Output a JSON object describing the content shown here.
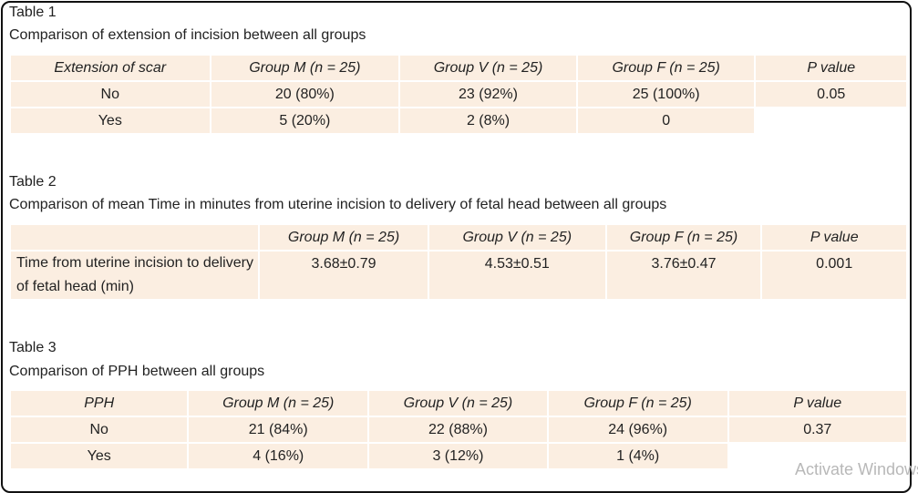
{
  "table1": {
    "label": "Table 1",
    "caption": "Comparison of extension of incision between all groups",
    "headers": [
      "Extension of scar",
      "Group M (n = 25)",
      "Group V (n = 25)",
      "Group F (n = 25)",
      "P value"
    ],
    "rows": [
      [
        "No",
        "20 (80%)",
        "23 (92%)",
        "25 (100%)",
        "0.05"
      ],
      [
        "Yes",
        "5 (20%)",
        "2 (8%)",
        "0"
      ]
    ]
  },
  "table2": {
    "label": "Table 2",
    "caption": "Comparison of mean Time in minutes from uterine incision to delivery of fetal head between all groups",
    "headers": [
      "",
      "Group M (n = 25)",
      "Group V (n = 25)",
      "Group F (n = 25)",
      "P value"
    ],
    "rows": [
      [
        "Time from uterine incision to delivery of fetal head (min)",
        "3.68±0.79",
        "4.53±0.51",
        "3.76±0.47",
        "0.001"
      ]
    ]
  },
  "table3": {
    "label": "Table 3",
    "caption": "Comparison of PPH between all groups",
    "headers": [
      "PPH",
      "Group M (n = 25)",
      "Group V (n = 25)",
      "Group F (n = 25)",
      "P value"
    ],
    "rows": [
      [
        "No",
        "21 (84%)",
        "22 (88%)",
        "24 (96%)",
        "0.37"
      ],
      [
        "Yes",
        "4 (16%)",
        "3 (12%)",
        "1 (4%)"
      ]
    ]
  },
  "watermark": "Activate Windows"
}
